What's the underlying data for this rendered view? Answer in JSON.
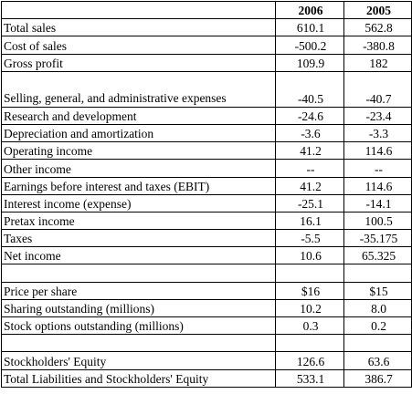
{
  "header": {
    "label": "",
    "col_2006": "2006",
    "col_2005": "2005"
  },
  "rows": [
    {
      "label": "Total sales",
      "v2006": "610.1",
      "v2005": "562.8"
    },
    {
      "label": "Cost of sales",
      "v2006": "-500.2",
      "v2005": "-380.8"
    },
    {
      "label": "Gross profit",
      "v2006": "109.9",
      "v2005": "182"
    },
    {
      "label": "Selling, general, and administrative expenses",
      "v2006": "-40.5",
      "v2005": "-40.7"
    },
    {
      "label": "Research and development",
      "v2006": "-24.6",
      "v2005": "-23.4"
    },
    {
      "label": "Depreciation and amortization",
      "v2006": "-3.6",
      "v2005": "-3.3"
    },
    {
      "label": "Operating income",
      "v2006": "41.2",
      "v2005": "114.6"
    },
    {
      "label": "Other income",
      "v2006": "--",
      "v2005": "--"
    },
    {
      "label": "Earnings before interest and taxes (EBIT)",
      "v2006": "41.2",
      "v2005": "114.6"
    },
    {
      "label": "Interest income (expense)",
      "v2006": "-25.1",
      "v2005": "-14.1"
    },
    {
      "label": "Pretax income",
      "v2006": "16.1",
      "v2005": "100.5"
    },
    {
      "label": "Taxes",
      "v2006": "-5.5",
      "v2005": "-35.175"
    },
    {
      "label": "Net income",
      "v2006": "10.6",
      "v2005": "65.325"
    },
    {
      "label": "",
      "v2006": "",
      "v2005": ""
    },
    {
      "label": "Price per share",
      "v2006": "$16",
      "v2005": "$15"
    },
    {
      "label": "Sharing outstanding (millions)",
      "v2006": "10.2",
      "v2005": "8.0"
    },
    {
      "label": "Stock options outstanding (millions)",
      "v2006": "0.3",
      "v2005": "0.2"
    },
    {
      "label": "",
      "v2006": "",
      "v2005": ""
    },
    {
      "label": "Stockholders' Equity",
      "v2006": "126.6",
      "v2005": "63.6"
    },
    {
      "label": "Total Liabilities and Stockholders' Equity",
      "v2006": "533.1",
      "v2005": "386.7"
    }
  ]
}
